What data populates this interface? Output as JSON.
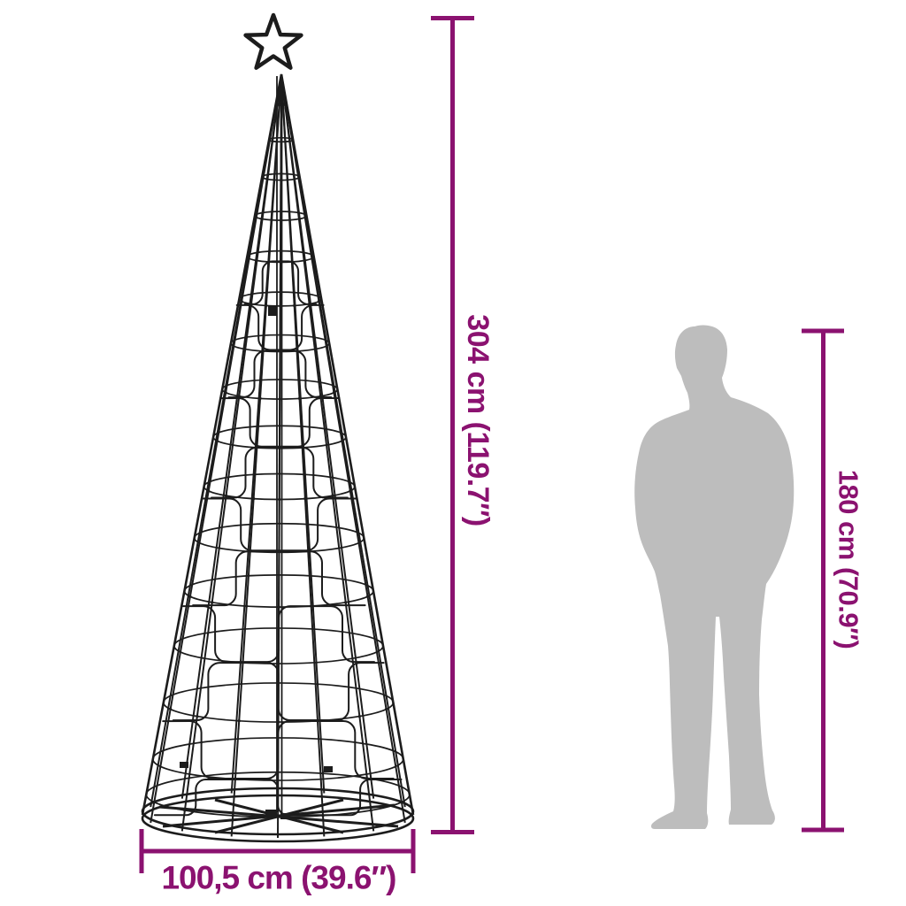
{
  "diagram": {
    "type": "product-dimension-diagram",
    "subject": "LED cone Christmas tree with star topper, shown next to a human silhouette for scale",
    "dimensions": {
      "product_height": {
        "label": "304 cm (119.7″)"
      },
      "person_height": {
        "label": "180 cm (70.9″)"
      },
      "product_width": {
        "label": "100,5 cm (39.6″)"
      }
    },
    "colors": {
      "dimension_accent": "#8B1270",
      "silhouette_gray": "#BDBDBD",
      "line_art": "#1C1C1C",
      "background": "#FFFFFF"
    },
    "icons": {
      "tree_topper": "star-icon"
    }
  }
}
